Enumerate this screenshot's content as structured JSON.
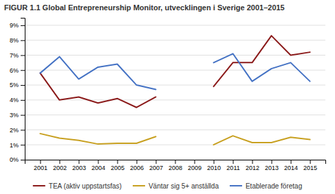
{
  "chart_data": {
    "type": "line",
    "title": "FIGUR 1.1 Global Entrepreneurship Monitor, utvecklingen i Sverige 2001–2015",
    "x": [
      2001,
      2002,
      2003,
      2004,
      2005,
      2006,
      2007,
      2008,
      2009,
      2010,
      2011,
      2012,
      2013,
      2014,
      2015
    ],
    "series": [
      {
        "name": "TEA (aktiv uppstartsfas)",
        "color": "#8B1A1A",
        "values": [
          5.8,
          4.0,
          4.2,
          3.8,
          4.1,
          3.5,
          4.2,
          null,
          null,
          4.9,
          6.5,
          6.5,
          8.3,
          7.0,
          7.2
        ]
      },
      {
        "name": "Väntar sig 5+ anställda",
        "color": "#C8A020",
        "values": [
          1.75,
          1.45,
          1.3,
          1.05,
          1.1,
          1.1,
          1.55,
          null,
          null,
          1.0,
          1.6,
          1.15,
          1.15,
          1.5,
          1.35
        ]
      },
      {
        "name": "Etablerade företag",
        "color": "#4472C4",
        "values": [
          5.8,
          6.9,
          5.4,
          6.2,
          6.4,
          5.0,
          4.7,
          null,
          null,
          6.5,
          7.1,
          5.25,
          6.1,
          6.5,
          5.25
        ]
      }
    ],
    "xlim": [
      2000.2,
      2015.8
    ],
    "xticks": [
      2001,
      2002,
      2003,
      2004,
      2005,
      2006,
      2007,
      2008,
      2009,
      2010,
      2011,
      2012,
      2013,
      2014,
      2015
    ],
    "ylim": [
      0,
      9.5
    ],
    "yticks": [
      {
        "value": 0,
        "label": "0%"
      },
      {
        "value": 1,
        "label": "1%"
      },
      {
        "value": 2,
        "label": "2%"
      },
      {
        "value": 3,
        "label": "3%"
      },
      {
        "value": 4,
        "label": "4%"
      },
      {
        "value": 5,
        "label": "5%"
      },
      {
        "value": 6,
        "label": "6%"
      },
      {
        "value": 7,
        "label": "7%"
      },
      {
        "value": 8,
        "label": "8%"
      },
      {
        "value": 9,
        "label": "9%"
      }
    ],
    "grid": true,
    "legend": "bottom"
  }
}
